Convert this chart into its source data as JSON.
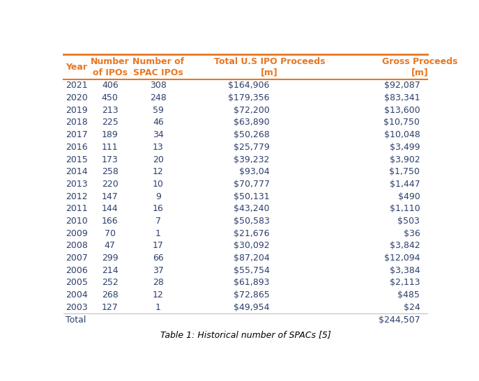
{
  "headers": [
    "Year",
    "Number\nof IPOs",
    "Number of\nSPAC IPOs",
    "Total U.S IPO Proceeds\n[m]",
    "Gross Proceeds\n[m]"
  ],
  "rows": [
    [
      "2021",
      "406",
      "308",
      "$164,906",
      "$92,087"
    ],
    [
      "2020",
      "450",
      "248",
      "$179,356",
      "$83,341"
    ],
    [
      "2019",
      "213",
      "59",
      "$72,200",
      "$13,600"
    ],
    [
      "2018",
      "225",
      "46",
      "$63,890",
      "$10,750"
    ],
    [
      "2017",
      "189",
      "34",
      "$50,268",
      "$10,048"
    ],
    [
      "2016",
      "111",
      "13",
      "$25,779",
      "$3,499"
    ],
    [
      "2015",
      "173",
      "20",
      "$39,232",
      "$3,902"
    ],
    [
      "2014",
      "258",
      "12",
      "$93,04",
      "$1,750"
    ],
    [
      "2013",
      "220",
      "10",
      "$70,777",
      "$1,447"
    ],
    [
      "2012",
      "147",
      "9",
      "$50,131",
      "$490"
    ],
    [
      "2011",
      "144",
      "16",
      "$43,240",
      "$1,110"
    ],
    [
      "2010",
      "166",
      "7",
      "$50,583",
      "$503"
    ],
    [
      "2009",
      "70",
      "1",
      "$21,676",
      "$36"
    ],
    [
      "2008",
      "47",
      "17",
      "$30,092",
      "$3,842"
    ],
    [
      "2007",
      "299",
      "66",
      "$87,204",
      "$12,094"
    ],
    [
      "2006",
      "214",
      "37",
      "$55,754",
      "$3,384"
    ],
    [
      "2005",
      "252",
      "28",
      "$61,893",
      "$2,113"
    ],
    [
      "2004",
      "268",
      "12",
      "$72,865",
      "$485"
    ],
    [
      "2003",
      "127",
      "1",
      "$49,954",
      "$24"
    ]
  ],
  "total_row": [
    "Total",
    "",
    "",
    "",
    "$244,507"
  ],
  "caption": "Table 1: Historical number of SPACs [5]",
  "header_color": "#E87722",
  "text_color": "#2C3E6B",
  "line_color": "#C0C0C0",
  "bg_color": "#FFFFFF",
  "header_fontsize": 9,
  "data_fontsize": 9,
  "caption_fontsize": 9
}
